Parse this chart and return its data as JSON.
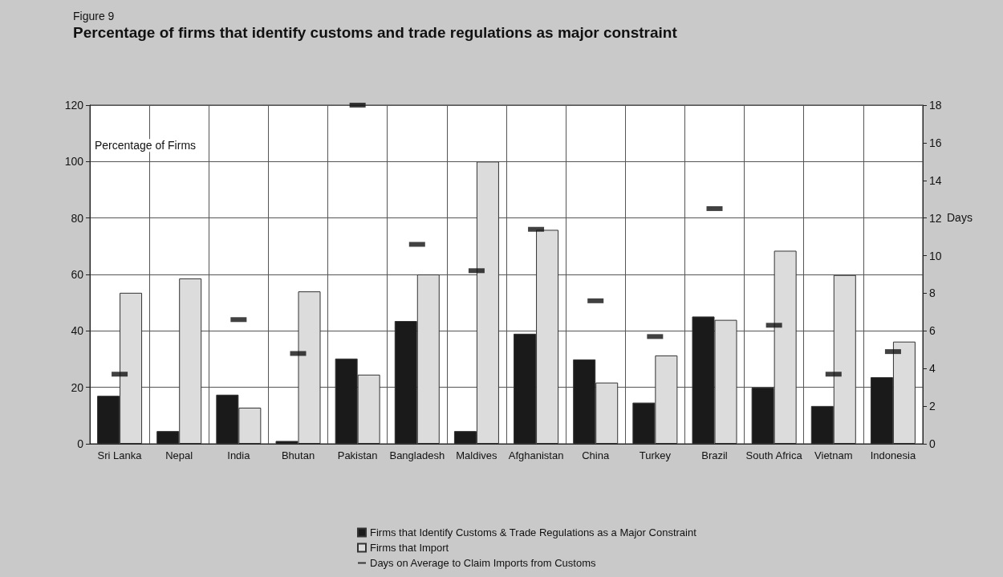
{
  "chart_data": {
    "type": "bar",
    "subtitle": "Figure 9",
    "title": "Percentage of firms that identify customs and trade regulations as major constraint",
    "ylabel": "Percentage of Firms",
    "y2label": "Days",
    "categories": [
      "Sri Lanka",
      "Nepal",
      "India",
      "Bhutan",
      "Pakistan",
      "Bangladesh",
      "Maldives",
      "Afghanistan",
      "China",
      "Turkey",
      "Brazil",
      "South Africa",
      "Vietnam",
      "Indonesia"
    ],
    "series": [
      {
        "name": "Firms that Identify Customs & Trade Regulations as a Major Constraint",
        "color": "#1a1a1a",
        "values": [
          17,
          4.5,
          17.4,
          1,
          30.2,
          43.5,
          4.5,
          39,
          29.9,
          14.6,
          45.1,
          19.9,
          13.4,
          23.6
        ]
      },
      {
        "name": "Firms that Import",
        "color": "#dcdcdc",
        "values": [
          53.5,
          58.6,
          12.8,
          54,
          24.5,
          60,
          100,
          75.8,
          21.7,
          31.3,
          43.9,
          68.4,
          59.8,
          36.2
        ]
      },
      {
        "name": "Days on Average to Claim Imports from Customs",
        "type": "scatter",
        "axis": "y2",
        "color": "#111111",
        "values": [
          3.7,
          null,
          6.6,
          4.8,
          18,
          10.6,
          9.2,
          11.4,
          7.6,
          5.7,
          12.5,
          6.3,
          3.7,
          4.9
        ]
      }
    ],
    "ylim": [
      0,
      120
    ],
    "yticks": [
      0,
      20,
      40,
      60,
      80,
      100,
      120
    ],
    "y2lim": [
      0,
      18
    ],
    "y2ticks": [
      0,
      2,
      4,
      6,
      8,
      10,
      12,
      14,
      16,
      18
    ],
    "grid": true,
    "legend": "bottom"
  }
}
